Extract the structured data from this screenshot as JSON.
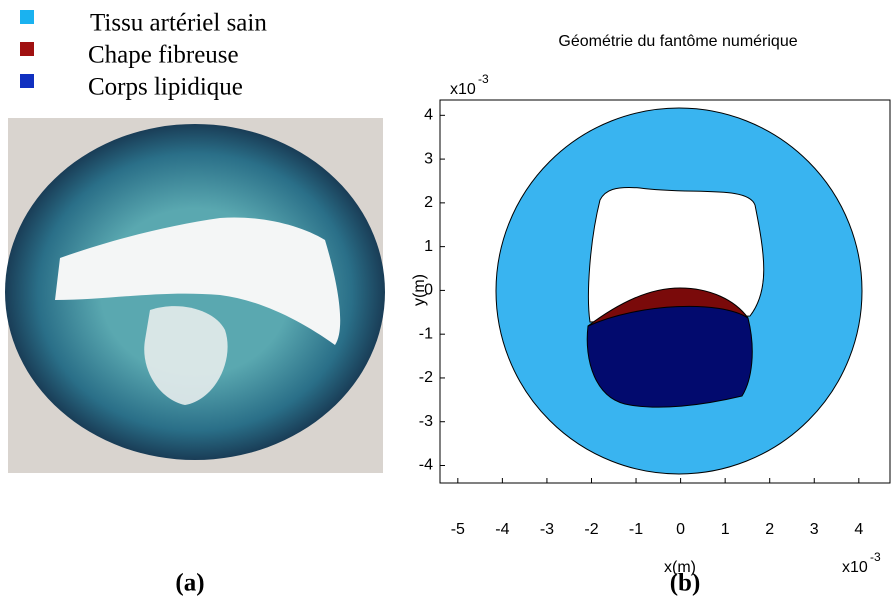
{
  "legend": [
    {
      "label": "Tissu artériel sain",
      "color": "#1ab2f0"
    },
    {
      "label": "Chape fibreuse",
      "color": "#a01010"
    },
    {
      "label": "Corps lipidique",
      "color": "#1030c0"
    }
  ],
  "panel_labels": [
    "(a)",
    "(b)"
  ],
  "chart_data": {
    "type": "geometry",
    "title": "Géométrie du fantôme numérique",
    "xlabel": "x(m)",
    "ylabel": "y(m)",
    "x_offset": {
      "base": "x10",
      "exp": "-3"
    },
    "y_offset": {
      "base": "x10",
      "exp": "-3"
    },
    "xlim": [
      -5.4,
      4.7
    ],
    "ylim": [
      -4.4,
      4.35
    ],
    "xticks": [
      -5,
      -4,
      -3,
      -2,
      -1,
      0,
      1,
      2,
      3,
      4
    ],
    "yticks": [
      -4,
      -3,
      -2,
      -1,
      0,
      1,
      2,
      3,
      4
    ]
  }
}
